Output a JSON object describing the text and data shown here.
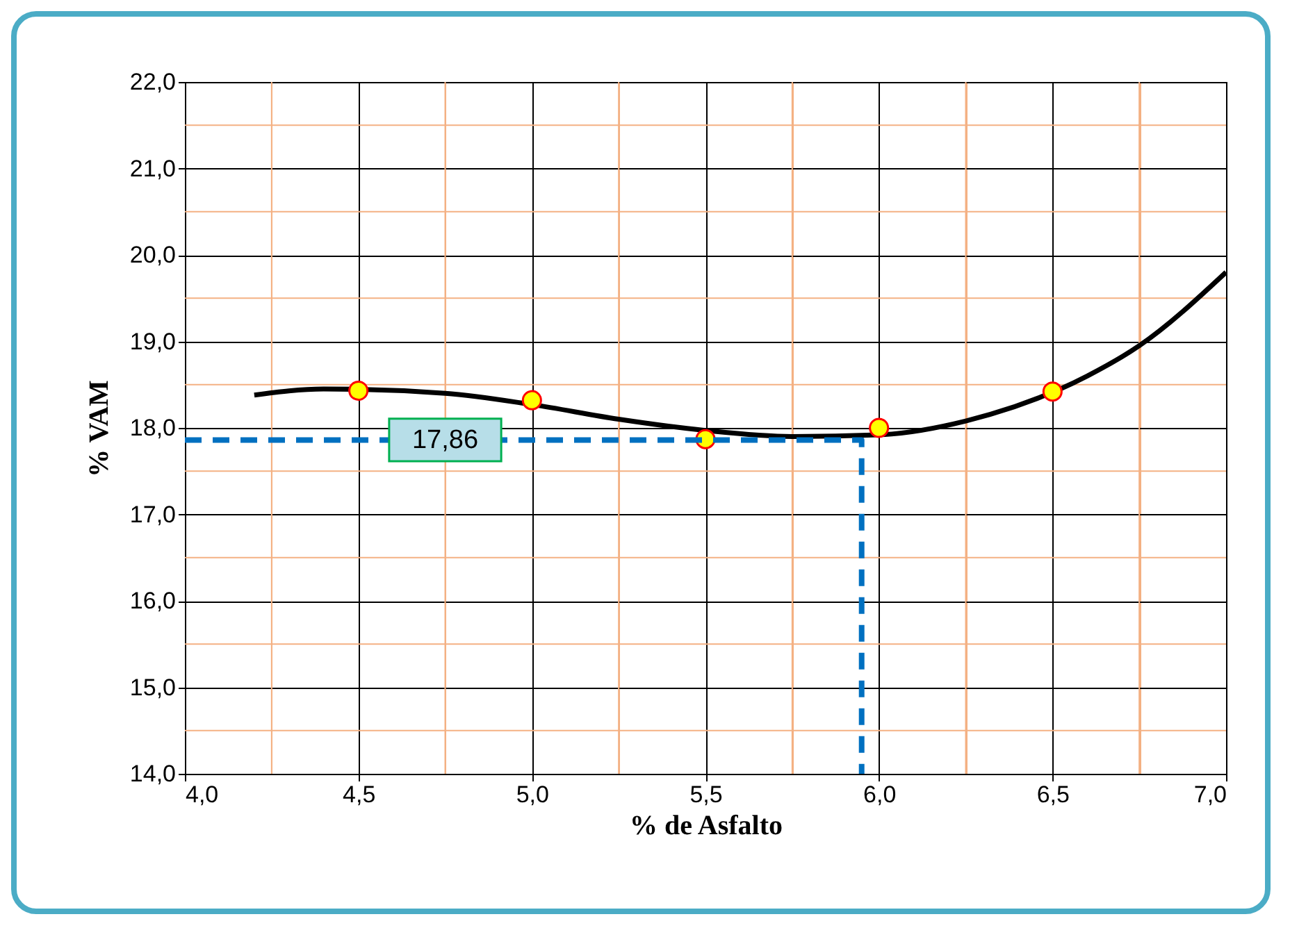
{
  "chart_data": {
    "type": "scatter",
    "xlabel": "% de Asfalto",
    "ylabel": "% VAM",
    "xlim": [
      4.0,
      7.0
    ],
    "ylim": [
      14.0,
      22.0
    ],
    "xticks": [
      {
        "value": 4.0,
        "label": "4,0"
      },
      {
        "value": 4.25,
        "label": null
      },
      {
        "value": 4.5,
        "label": "4,5"
      },
      {
        "value": 4.75,
        "label": null
      },
      {
        "value": 5.0,
        "label": "5,0"
      },
      {
        "value": 5.25,
        "label": null
      },
      {
        "value": 5.5,
        "label": "5,5"
      },
      {
        "value": 5.75,
        "label": null
      },
      {
        "value": 6.0,
        "label": "6,0"
      },
      {
        "value": 6.25,
        "label": null
      },
      {
        "value": 6.5,
        "label": "6,5"
      },
      {
        "value": 6.75,
        "label": null
      },
      {
        "value": 7.0,
        "label": "7,0"
      }
    ],
    "yticks": [
      {
        "value": 14.0,
        "label": "14,0"
      },
      {
        "value": 14.5,
        "label": null
      },
      {
        "value": 15.0,
        "label": "15,0"
      },
      {
        "value": 15.5,
        "label": null
      },
      {
        "value": 16.0,
        "label": "16,0"
      },
      {
        "value": 16.5,
        "label": null
      },
      {
        "value": 17.0,
        "label": "17,0"
      },
      {
        "value": 17.5,
        "label": null
      },
      {
        "value": 18.0,
        "label": "18,0"
      },
      {
        "value": 18.5,
        "label": null
      },
      {
        "value": 19.0,
        "label": "19,0"
      },
      {
        "value": 19.5,
        "label": null
      },
      {
        "value": 20.0,
        "label": "20,0"
      },
      {
        "value": 20.5,
        "label": null
      },
      {
        "value": 21.0,
        "label": "21,0"
      },
      {
        "value": 21.5,
        "label": null
      },
      {
        "value": 22.0,
        "label": "22,0"
      }
    ],
    "grid": true,
    "series": [
      {
        "type": "line",
        "color": "#000000",
        "marker": "none",
        "x": [
          4.2,
          4.4,
          4.75,
          5.0,
          5.25,
          5.5,
          5.75,
          6.0,
          6.25,
          6.6,
          6.75,
          7.0
        ],
        "values": [
          18.38,
          18.45,
          18.4,
          18.27,
          18.1,
          17.97,
          17.9,
          17.92,
          18.08,
          18.6,
          18.95,
          19.8
        ]
      },
      {
        "color": "#ffff00",
        "marker": "circle",
        "x": [
          4.5,
          5.0,
          5.5,
          6.0,
          6.5
        ],
        "values": [
          18.43,
          18.32,
          17.87,
          18.0,
          18.42
        ]
      },
      {
        "type": "line",
        "color": "#0070c0",
        "marker": "none",
        "line_style": "dashed",
        "x": [
          4.0,
          5.95,
          5.95
        ],
        "values": [
          17.86,
          17.86,
          14.0
        ]
      }
    ],
    "annotations": [
      {
        "text": "17,86",
        "x": 4.75,
        "y": 17.86
      }
    ]
  }
}
